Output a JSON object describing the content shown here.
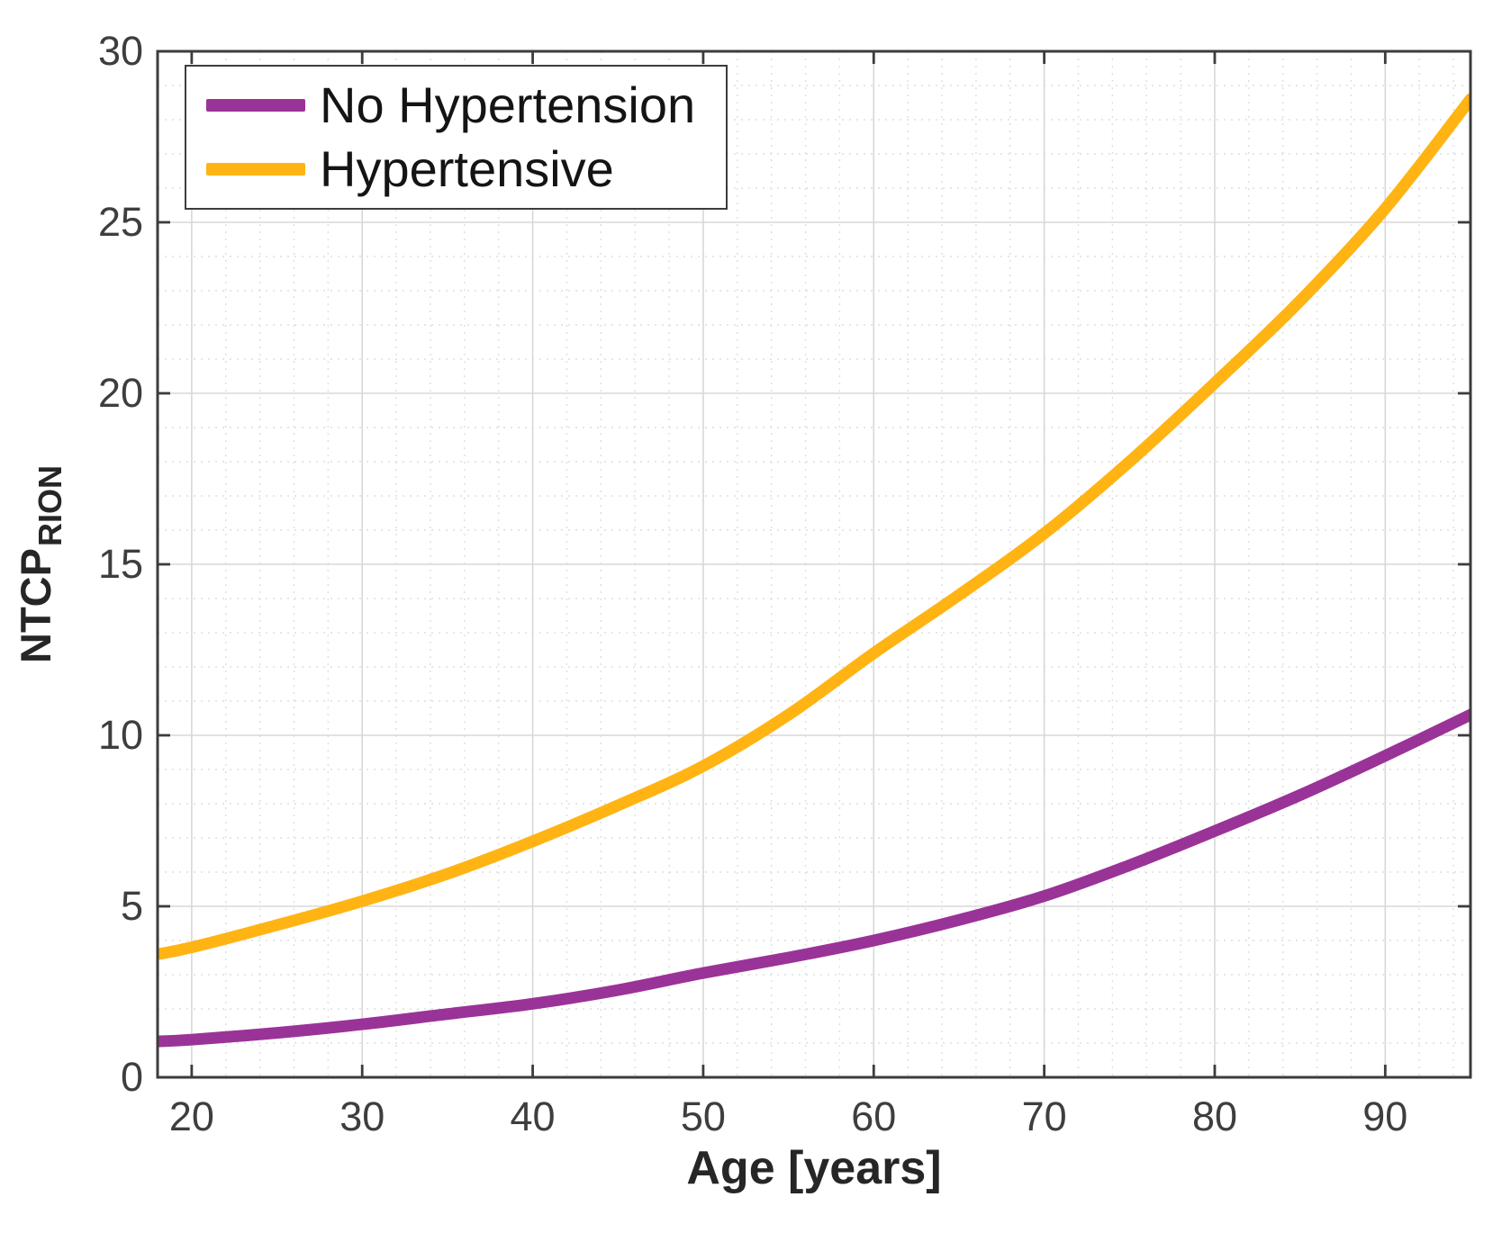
{
  "figure": {
    "background": "#ffffff",
    "legend": {
      "position": "top-left",
      "items": [
        {
          "label": "No Hypertension",
          "color": "#9a3398"
        },
        {
          "label": "Hypertensive",
          "color": "#ffb414"
        }
      ]
    }
  },
  "chart_data": {
    "type": "line",
    "title": "",
    "xlabel": "Age [years]",
    "ylabel": "NTCP",
    "ylabel_subscript": "RION",
    "xlim": [
      18,
      95
    ],
    "ylim": [
      0,
      30
    ],
    "xticks": [
      20,
      30,
      40,
      50,
      60,
      70,
      80,
      90
    ],
    "yticks": [
      0,
      5,
      10,
      15,
      20,
      25,
      30
    ],
    "minor_x_step": 2,
    "minor_y_step": 1,
    "grid": "major-solid-plus-minor-dotted",
    "legend_position": "top-left",
    "x": [
      18,
      20,
      25,
      30,
      35,
      40,
      45,
      50,
      55,
      60,
      65,
      70,
      75,
      80,
      85,
      90,
      95
    ],
    "series": [
      {
        "name": "No Hypertension",
        "color": "#9a3398",
        "values": [
          1.05,
          1.1,
          1.3,
          1.55,
          1.85,
          2.15,
          2.55,
          3.05,
          3.5,
          4.0,
          4.6,
          5.3,
          6.2,
          7.2,
          8.25,
          9.4,
          10.6
        ]
      },
      {
        "name": "Hypertensive",
        "color": "#ffb414",
        "values": [
          3.6,
          3.8,
          4.45,
          5.15,
          5.95,
          6.9,
          7.95,
          9.1,
          10.6,
          12.4,
          14.1,
          15.9,
          18.0,
          20.3,
          22.7,
          25.4,
          28.6
        ]
      }
    ]
  },
  "style": {
    "axis_color": "#3c3c3c",
    "tick_label_color": "#3e3e3e",
    "label_color": "#262626",
    "major_grid_color": "#d8d8d8",
    "minor_grid_color": "#dedede",
    "line_width": 13
  }
}
